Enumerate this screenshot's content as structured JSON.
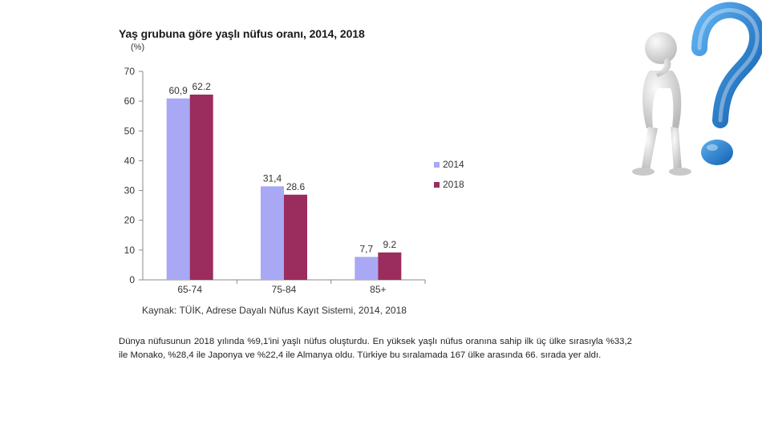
{
  "chart_data": {
    "type": "bar",
    "title": "Yaş grubuna göre yaşlı nüfus oranı, 2014, 2018",
    "ylabel": "(%)",
    "xlabel": "",
    "categories": [
      "65-74",
      "75-84",
      "85+"
    ],
    "series": [
      {
        "name": "2014",
        "values": [
          60.9,
          31.4,
          7.7
        ],
        "labels": [
          "60,9",
          "31,4",
          "7,7"
        ],
        "color": "#a8a8f4"
      },
      {
        "name": "2018",
        "values": [
          62.2,
          28.6,
          9.2
        ],
        "labels": [
          "62.2",
          "28.6",
          "9.2"
        ],
        "color": "#9b2c5e"
      }
    ],
    "ylim": [
      0,
      70
    ],
    "yticks": [
      0,
      10,
      20,
      30,
      40,
      50,
      60,
      70
    ],
    "grid": false,
    "legend": "right"
  },
  "source": "Kaynak: TÜİK, Adrese Dayalı Nüfus Kayıt Sistemi, 2014, 2018",
  "body_text": "Dünya nüfusunun 2018 yılında %9,1'ini yaşlı nüfus oluşturdu. En yüksek yaşlı nüfus oranına sahip ilk üç ülke sırasıyla %33,2 ile Monako, %28,4 ile Japonya ve %22,4 ile Almanya oldu. Türkiye bu sıralamada 167 ülke arasında 66. sırada yer aldı.",
  "illustration": {
    "icon": "thinking-person-question-mark-icon",
    "question_color": "#1c7fd6",
    "figure_color": "#e4e4e4"
  }
}
